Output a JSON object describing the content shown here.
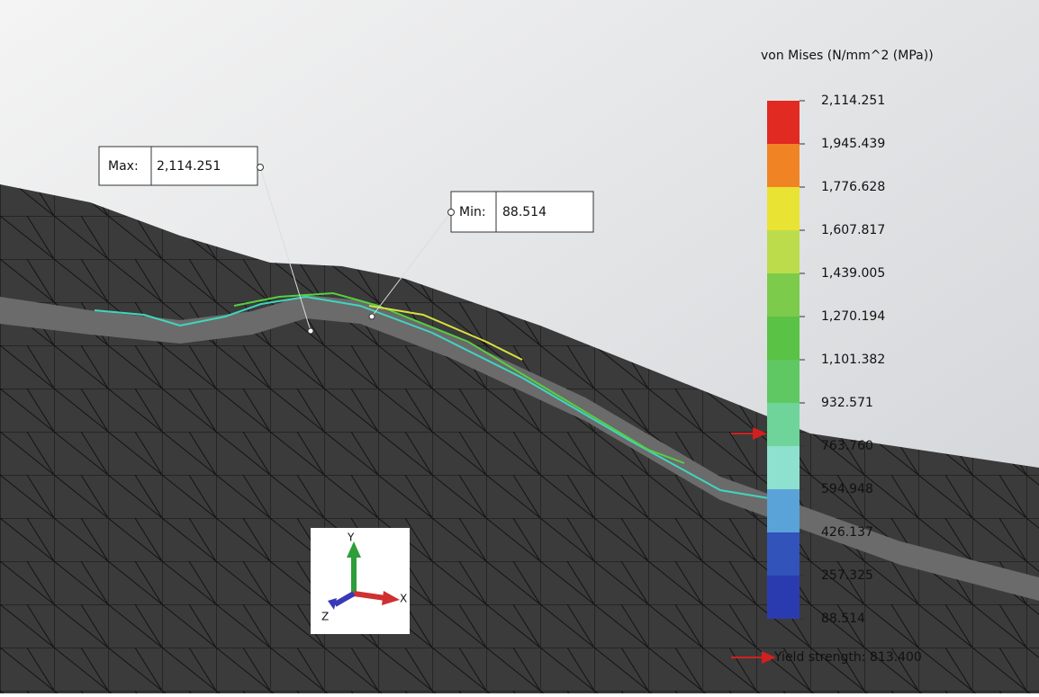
{
  "legend": {
    "title": "von Mises (N/mm^2 (MPa))",
    "labels": [
      "2,114.251",
      "1,945.439",
      "1,776.628",
      "1,607.817",
      "1,439.005",
      "1,270.194",
      "1,101.382",
      "932.571",
      "763.760",
      "594.948",
      "426.137",
      "257.325",
      "88.514"
    ],
    "colors": [
      "#e02a22",
      "#f08424",
      "#e9e334",
      "#bcdc4c",
      "#7ccb4a",
      "#5ac244",
      "#5fc863",
      "#6fd49a",
      "#8ee0cf",
      "#5aa3d8",
      "#3153ba",
      "#2a3bb0"
    ]
  },
  "max": {
    "label": "Max:",
    "value": "2,114.251"
  },
  "min": {
    "label": "Min:",
    "value": "88.514"
  },
  "yield": "Yield strength: 813.400",
  "triad": {
    "x": "X",
    "y": "Y",
    "z": "Z"
  }
}
